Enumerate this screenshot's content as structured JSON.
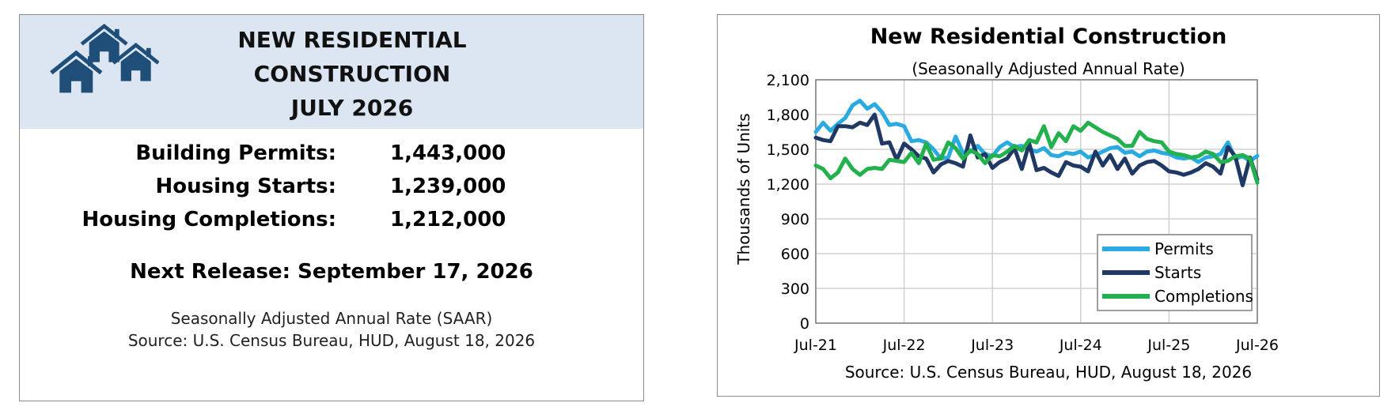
{
  "info_panel": {
    "headline": [
      "NEW RESIDENTIAL",
      "CONSTRUCTION",
      "JULY 2026"
    ],
    "logo_icon": "houses-icon",
    "logo_color": "#1f4e79",
    "stats": [
      {
        "label": "Building Permits:",
        "value": "1,443,000"
      },
      {
        "label": "Housing Starts:",
        "value": "1,239,000"
      },
      {
        "label": "Housing Completions:",
        "value": "1,212,000"
      }
    ],
    "next_release": "Next Release: September 17, 2026",
    "notes": [
      "Seasonally Adjusted Annual Rate (SAAR)",
      "Source:  U.S. Census Bureau, HUD, August 18, 2026"
    ]
  },
  "chart_data": {
    "type": "line",
    "title": "New Residential Construction",
    "subtitle": "(Seasonally Adjusted Annual Rate)",
    "xlabel": "",
    "ylabel": "Thousands of Units",
    "source": "Source:  U.S. Census Bureau, HUD, August 18, 2026",
    "x_ticks": [
      "Jul-21",
      "Jul-22",
      "Jul-23",
      "Jul-24",
      "Jul-25",
      "Jul-26"
    ],
    "ylim": [
      0,
      2100
    ],
    "y_ticks": [
      0,
      300,
      600,
      900,
      1200,
      1500,
      1800,
      2100
    ],
    "y_tick_labels": [
      "0",
      "300",
      "600",
      "900",
      "1,200",
      "1,500",
      "1,800",
      "2,100"
    ],
    "grid": true,
    "legend_position": "bottom-right",
    "series": [
      {
        "name": "Permits",
        "color": "#29abe2",
        "values": [
          1650,
          1730,
          1660,
          1720,
          1770,
          1880,
          1920,
          1850,
          1890,
          1820,
          1710,
          1720,
          1700,
          1570,
          1580,
          1560,
          1500,
          1420,
          1430,
          1610,
          1470,
          1480,
          1530,
          1460,
          1440,
          1520,
          1560,
          1520,
          1530,
          1500,
          1480,
          1510,
          1450,
          1440,
          1470,
          1460,
          1480,
          1430,
          1450,
          1480,
          1510,
          1520,
          1470,
          1480,
          1440,
          1480,
          1490,
          1470,
          1460,
          1430,
          1420,
          1430,
          1390,
          1430,
          1440,
          1460,
          1560,
          1420,
          1440,
          1400,
          1443
        ]
      },
      {
        "name": "Starts",
        "color": "#1f3864",
        "values": [
          1600,
          1580,
          1570,
          1700,
          1700,
          1690,
          1730,
          1710,
          1800,
          1550,
          1560,
          1410,
          1550,
          1500,
          1440,
          1420,
          1300,
          1370,
          1400,
          1380,
          1350,
          1620,
          1430,
          1460,
          1340,
          1390,
          1420,
          1510,
          1330,
          1550,
          1320,
          1340,
          1300,
          1270,
          1390,
          1360,
          1350,
          1310,
          1480,
          1360,
          1450,
          1330,
          1420,
          1290,
          1360,
          1390,
          1400,
          1360,
          1310,
          1300,
          1280,
          1300,
          1330,
          1380,
          1350,
          1290,
          1520,
          1440,
          1190,
          1430,
          1239
        ]
      },
      {
        "name": "Completions",
        "color": "#22b14c",
        "values": [
          1360,
          1330,
          1250,
          1300,
          1420,
          1330,
          1280,
          1330,
          1340,
          1330,
          1410,
          1400,
          1390,
          1470,
          1380,
          1550,
          1410,
          1420,
          1560,
          1510,
          1420,
          1490,
          1460,
          1380,
          1450,
          1440,
          1480,
          1530,
          1490,
          1580,
          1560,
          1700,
          1520,
          1640,
          1570,
          1700,
          1660,
          1730,
          1690,
          1650,
          1620,
          1590,
          1530,
          1530,
          1650,
          1590,
          1570,
          1560,
          1480,
          1460,
          1450,
          1430,
          1440,
          1480,
          1460,
          1390,
          1400,
          1440,
          1450,
          1420,
          1212
        ]
      }
    ]
  }
}
